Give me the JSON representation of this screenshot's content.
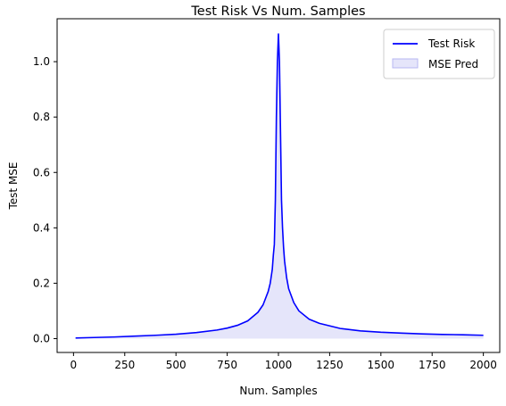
{
  "chart_data": {
    "type": "line",
    "title": "Test Risk Vs Num. Samples",
    "xlabel": "Num. Samples",
    "ylabel": "Test MSE",
    "xlim": [
      -80,
      2080
    ],
    "ylim": [
      -0.05,
      1.155
    ],
    "xticks": [
      0,
      250,
      500,
      750,
      1000,
      1250,
      1500,
      1750,
      2000
    ],
    "xtick_labels": [
      "0",
      "250",
      "500",
      "750",
      "1000",
      "1250",
      "1500",
      "1750",
      "2000"
    ],
    "yticks": [
      0.0,
      0.2,
      0.4,
      0.6,
      0.8,
      1.0
    ],
    "ytick_labels": [
      "0.0",
      "0.2",
      "0.4",
      "0.6",
      "0.8",
      "1.0"
    ],
    "grid": false,
    "legend_position": "top-right",
    "series": [
      {
        "name": "Test Risk",
        "kind": "line",
        "color": "#0000ff",
        "x": [
          10,
          100,
          200,
          300,
          400,
          500,
          600,
          700,
          750,
          800,
          850,
          900,
          925,
          950,
          960,
          970,
          975,
          980,
          985,
          990,
          995,
          1000,
          1005,
          1010,
          1015,
          1020,
          1025,
          1030,
          1040,
          1050,
          1075,
          1100,
          1150,
          1200,
          1300,
          1400,
          1500,
          1600,
          1700,
          1800,
          1900,
          2000
        ],
        "y": [
          0.002,
          0.004,
          0.006,
          0.009,
          0.012,
          0.016,
          0.022,
          0.031,
          0.038,
          0.048,
          0.064,
          0.095,
          0.122,
          0.17,
          0.2,
          0.25,
          0.3,
          0.34,
          0.5,
          0.8,
          1.0,
          1.1,
          1.0,
          0.75,
          0.5,
          0.4,
          0.33,
          0.28,
          0.22,
          0.18,
          0.13,
          0.1,
          0.07,
          0.055,
          0.037,
          0.028,
          0.023,
          0.02,
          0.017,
          0.015,
          0.014,
          0.012
        ]
      },
      {
        "name": "MSE Pred",
        "kind": "area",
        "color": "#e5e5fa",
        "edge_color": "#b7b7f2"
      }
    ]
  }
}
